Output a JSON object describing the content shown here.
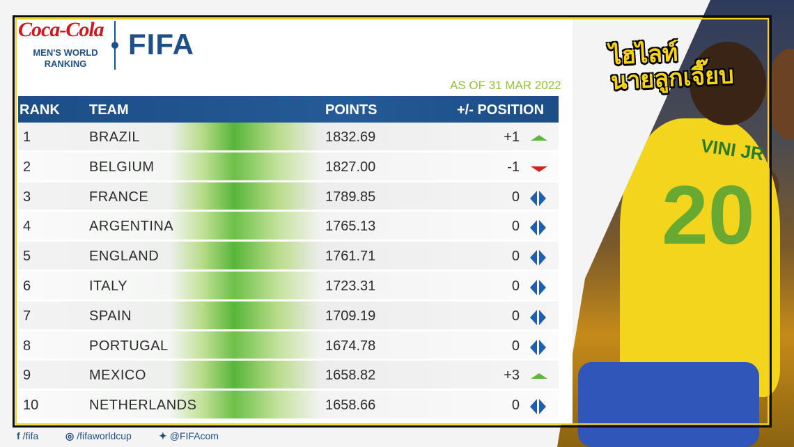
{
  "brand": {
    "sponsor": "Coca-Cola",
    "subtitle_line1": "MEN'S WORLD",
    "subtitle_line2": "RANKING",
    "org": "FIFA"
  },
  "as_of": "AS OF 31 MAR 2022",
  "table": {
    "headers": {
      "rank": "RANK",
      "team": "TEAM",
      "points": "POINTS",
      "position": "+/- POSITION"
    },
    "rows": [
      {
        "rank": "1",
        "team": "BRAZIL",
        "points": "1832.69",
        "change": "+1",
        "trend": "up"
      },
      {
        "rank": "2",
        "team": "BELGIUM",
        "points": "1827.00",
        "change": "-1",
        "trend": "down"
      },
      {
        "rank": "3",
        "team": "FRANCE",
        "points": "1789.85",
        "change": "0",
        "trend": "same"
      },
      {
        "rank": "4",
        "team": "ARGENTINA",
        "points": "1765.13",
        "change": "0",
        "trend": "same"
      },
      {
        "rank": "5",
        "team": "ENGLAND",
        "points": "1761.71",
        "change": "0",
        "trend": "same"
      },
      {
        "rank": "6",
        "team": "ITALY",
        "points": "1723.31",
        "change": "0",
        "trend": "same"
      },
      {
        "rank": "7",
        "team": "SPAIN",
        "points": "1709.19",
        "change": "0",
        "trend": "same"
      },
      {
        "rank": "8",
        "team": "PORTUGAL",
        "points": "1674.78",
        "change": "0",
        "trend": "same"
      },
      {
        "rank": "9",
        "team": "MEXICO",
        "points": "1658.82",
        "change": "+3",
        "trend": "up"
      },
      {
        "rank": "10",
        "team": "NETHERLANDS",
        "points": "1658.66",
        "change": "0",
        "trend": "same"
      }
    ]
  },
  "footer": {
    "facebook": "/fifa",
    "instagram": "/fifaworldcup",
    "twitter": "@FIFAcom"
  },
  "overlay_title": {
    "line1": "ไฮไลท์",
    "line2": "นายลูกเจี๊ยบ"
  },
  "photo": {
    "jersey_name": "VINI JR",
    "jersey_number": "20"
  },
  "colors": {
    "header_blue": "#1c4d86",
    "accent_green": "#58b63a",
    "as_of_green": "#94c237",
    "down_red": "#d42020",
    "same_blue": "#1f5fb0",
    "overlay_yellow": "#f6d410"
  }
}
